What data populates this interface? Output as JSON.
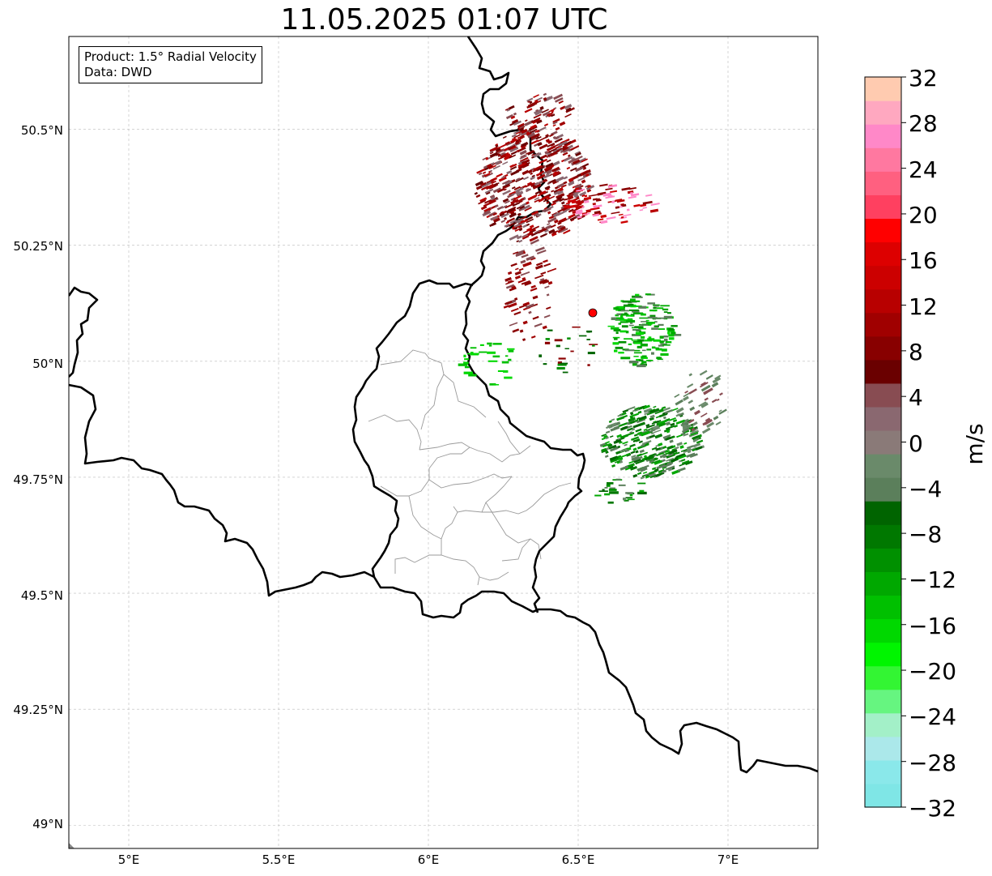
{
  "title": "11.05.2025 01:07 UTC",
  "info_box": {
    "product": "Product: 1.5° Radial Velocity",
    "data": "Data: DWD"
  },
  "map": {
    "lon_range": [
      4.8,
      7.3
    ],
    "lat_range": [
      48.95,
      50.7
    ],
    "x_ticks": [
      {
        "value": 5.0,
        "label": "5°E"
      },
      {
        "value": 5.5,
        "label": "5.5°E"
      },
      {
        "value": 6.0,
        "label": "6°E"
      },
      {
        "value": 6.5,
        "label": "6.5°E"
      },
      {
        "value": 7.0,
        "label": "7°E"
      }
    ],
    "y_ticks": [
      {
        "value": 50.5,
        "label": "50.5°N"
      },
      {
        "value": 50.25,
        "label": "50.25°N"
      },
      {
        "value": 50.0,
        "label": "50°N"
      },
      {
        "value": 49.75,
        "label": "49.75°N"
      },
      {
        "value": 49.5,
        "label": "49.5°N"
      },
      {
        "value": 49.25,
        "label": "49.25°N"
      },
      {
        "value": 49.0,
        "label": "49°N"
      }
    ],
    "radar_site": {
      "lon": 6.55,
      "lat": 50.11,
      "color": "#ff0000"
    }
  },
  "colorbar": {
    "unit": "m/s",
    "min": -32,
    "max": 32,
    "tick_labels": [
      "32",
      "28",
      "24",
      "20",
      "16",
      "12",
      "8",
      "4",
      "0",
      "−4",
      "−8",
      "−12",
      "−16",
      "−20",
      "−24",
      "−28",
      "−32"
    ],
    "colors": [
      "#7fe6e6",
      "#8ae8ea",
      "#abe8ea",
      "#a3f0c8",
      "#66f580",
      "#33f533",
      "#00f500",
      "#00d800",
      "#00c000",
      "#00a800",
      "#009000",
      "#007800",
      "#006400",
      "#5b7f5b",
      "#6a8a6a",
      "#8a7a78",
      "#8a6870",
      "#884c52",
      "#6a0000",
      "#880000",
      "#a00000",
      "#b80000",
      "#cc0000",
      "#dd0000",
      "#ff0000",
      "#ff4060",
      "#ff6080",
      "#ff78a0",
      "#ff88c8",
      "#ffa8c0",
      "#ffcbb0"
    ]
  }
}
